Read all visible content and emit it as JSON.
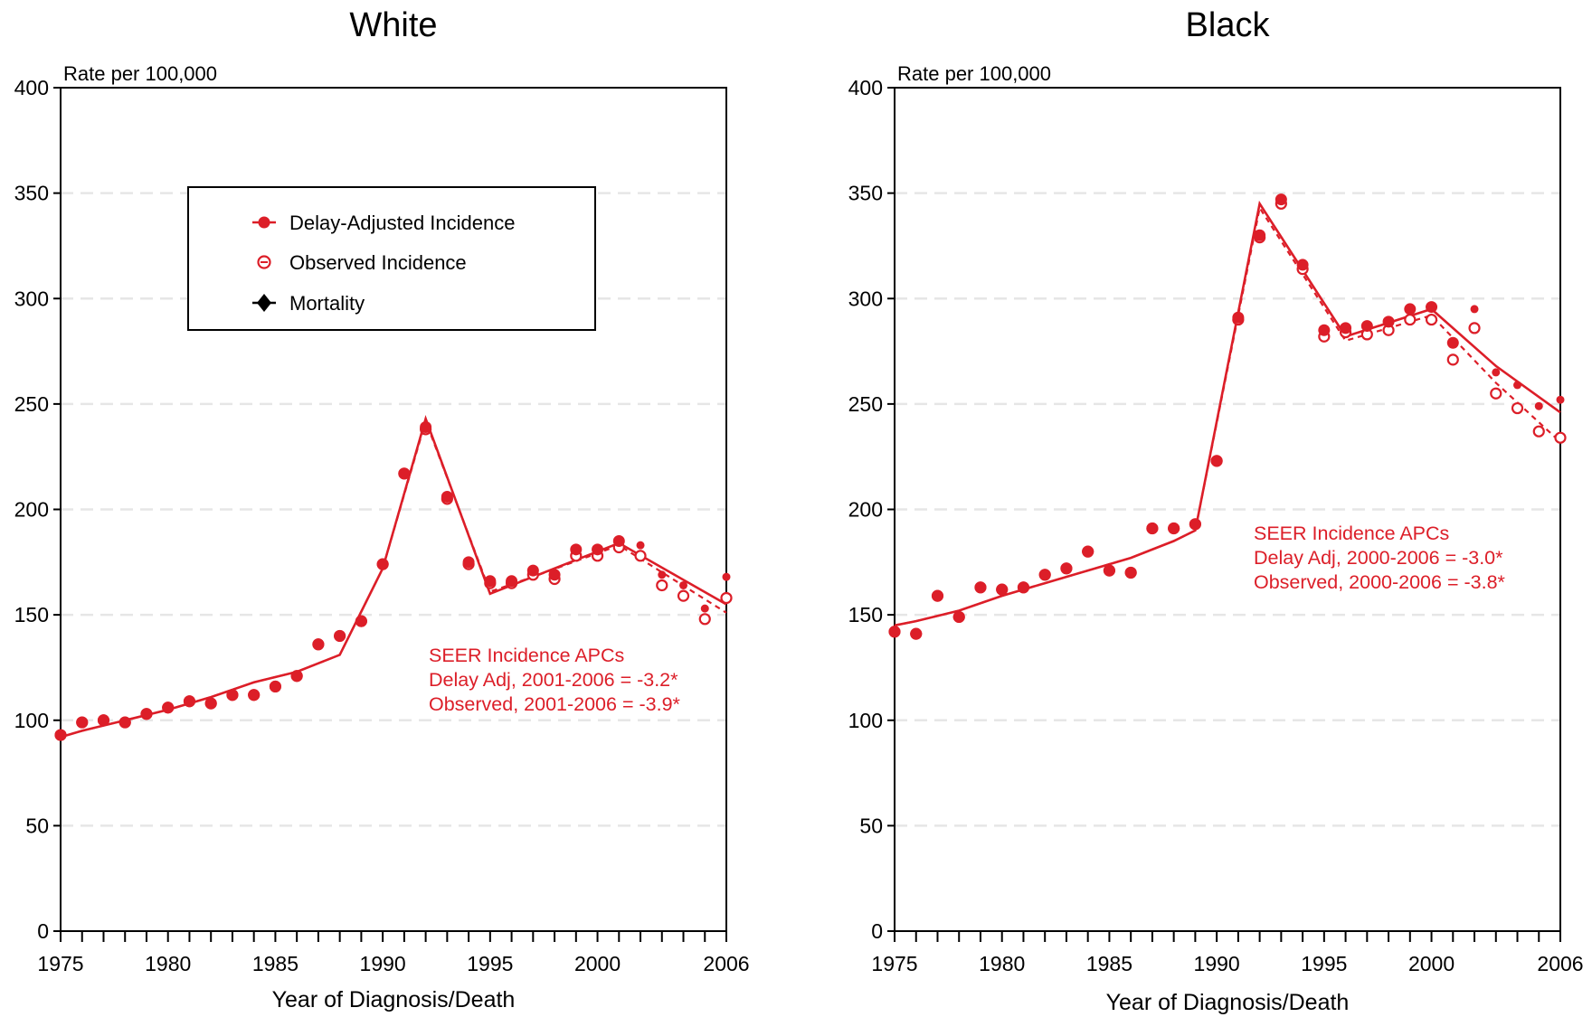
{
  "chart_data": [
    {
      "type": "line",
      "title": "White",
      "xlabel": "Year of Diagnosis/Death",
      "ylabel": "Rate per 100,000",
      "xlim": [
        1975,
        2006
      ],
      "ylim": [
        0,
        400
      ],
      "x_ticks": [
        "1975",
        "1980",
        "1985",
        "1990",
        "1995",
        "2000",
        "2006"
      ],
      "y_ticks": [
        "0",
        "50",
        "100",
        "150",
        "200",
        "250",
        "300",
        "350",
        "400"
      ],
      "grid": true,
      "legend": {
        "position": "top-center",
        "entries": [
          "Delay-Adjusted Incidence",
          "Observed Incidence",
          "Mortality"
        ]
      },
      "annotation": [
        "SEER Incidence APCs",
        "Delay Adj, 2001-2006 = -3.2*",
        "Observed, 2001-2006 = -3.9*"
      ],
      "series": [
        {
          "name": "Delay-Adjusted Incidence",
          "x": [
            1975,
            1976,
            1977,
            1978,
            1979,
            1980,
            1981,
            1982,
            1983,
            1984,
            1985,
            1986,
            1987,
            1988,
            1989,
            1990,
            1991,
            1992,
            1993,
            1994,
            1995,
            1996,
            1997,
            1998,
            1999,
            2000,
            2001,
            2002,
            2003,
            2004,
            2005,
            2006
          ],
          "values": [
            93,
            99,
            100,
            99,
            103,
            106,
            109,
            108,
            112,
            112,
            116,
            121,
            136,
            140,
            147,
            174,
            217,
            239,
            206,
            175,
            166,
            166,
            171,
            169,
            181,
            181,
            185,
            183,
            169,
            164,
            153,
            168
          ]
        },
        {
          "name": "Observed Incidence",
          "x": [
            1975,
            1976,
            1977,
            1978,
            1979,
            1980,
            1981,
            1982,
            1983,
            1984,
            1985,
            1986,
            1987,
            1988,
            1989,
            1990,
            1991,
            1992,
            1993,
            1994,
            1995,
            1996,
            1997,
            1998,
            1999,
            2000,
            2001,
            2002,
            2003,
            2004,
            2005,
            2006
          ],
          "values": [
            93,
            99,
            100,
            99,
            103,
            106,
            109,
            108,
            112,
            112,
            116,
            121,
            136,
            140,
            147,
            174,
            217,
            238,
            205,
            174,
            165,
            165,
            169,
            167,
            178,
            178,
            182,
            178,
            164,
            159,
            148,
            158
          ]
        },
        {
          "name": "Delay-Adjusted Trend",
          "x": [
            1975,
            1976,
            1978,
            1980,
            1982,
            1984,
            1986,
            1988,
            1990,
            1992,
            1995,
            1997,
            2001,
            2006
          ],
          "values": [
            92,
            95,
            100,
            105,
            111,
            118,
            123,
            131,
            172,
            243,
            160,
            168,
            184,
            155
          ]
        },
        {
          "name": "Observed Trend",
          "x": [
            1975,
            1976,
            1978,
            1980,
            1982,
            1984,
            1986,
            1988,
            1990,
            1992,
            1995,
            1997,
            2001,
            2006
          ],
          "values": [
            92,
            95,
            100,
            105,
            111,
            118,
            123,
            131,
            172,
            242,
            161,
            168,
            183,
            151
          ]
        }
      ]
    },
    {
      "type": "line",
      "title": "Black",
      "xlabel": "Year of Diagnosis/Death",
      "ylabel": "Rate per 100,000",
      "xlim": [
        1975,
        2006
      ],
      "ylim": [
        0,
        400
      ],
      "x_ticks": [
        "1975",
        "1980",
        "1985",
        "1990",
        "1995",
        "2000",
        "2006"
      ],
      "y_ticks": [
        "0",
        "50",
        "100",
        "150",
        "200",
        "250",
        "300",
        "350",
        "400"
      ],
      "grid": true,
      "annotation": [
        "SEER Incidence APCs",
        "Delay Adj, 2000-2006 = -3.0*",
        "Observed, 2000-2006 = -3.8*"
      ],
      "series": [
        {
          "name": "Delay-Adjusted Incidence",
          "x": [
            1975,
            1976,
            1977,
            1978,
            1979,
            1980,
            1981,
            1982,
            1983,
            1984,
            1985,
            1986,
            1987,
            1988,
            1989,
            1990,
            1991,
            1992,
            1993,
            1994,
            1995,
            1996,
            1997,
            1998,
            1999,
            2000,
            2001,
            2002,
            2003,
            2004,
            2005,
            2006
          ],
          "values": [
            142,
            141,
            159,
            149,
            163,
            162,
            163,
            169,
            172,
            180,
            171,
            170,
            191,
            191,
            193,
            223,
            291,
            330,
            347,
            316,
            285,
            286,
            287,
            289,
            295,
            296,
            279,
            295,
            265,
            259,
            249,
            252
          ]
        },
        {
          "name": "Observed Incidence",
          "x": [
            1975,
            1976,
            1977,
            1978,
            1979,
            1980,
            1981,
            1982,
            1983,
            1984,
            1985,
            1986,
            1987,
            1988,
            1989,
            1990,
            1991,
            1992,
            1993,
            1994,
            1995,
            1996,
            1997,
            1998,
            1999,
            2000,
            2001,
            2002,
            2003,
            2004,
            2005,
            2006
          ],
          "values": [
            142,
            141,
            159,
            149,
            163,
            162,
            163,
            169,
            172,
            180,
            171,
            170,
            191,
            191,
            193,
            223,
            290,
            329,
            345,
            314,
            282,
            284,
            283,
            285,
            290,
            290,
            271,
            286,
            255,
            248,
            237,
            234
          ]
        },
        {
          "name": "Delay-Adjusted Trend",
          "x": [
            1975,
            1976,
            1978,
            1980,
            1982,
            1984,
            1986,
            1988,
            1989,
            1992,
            1996,
            2000,
            2003,
            2006
          ],
          "values": [
            145,
            147,
            152,
            159,
            165,
            171,
            177,
            185,
            190,
            345,
            282,
            295,
            268,
            246
          ]
        },
        {
          "name": "Observed Trend",
          "x": [
            1975,
            1976,
            1978,
            1980,
            1982,
            1984,
            1986,
            1988,
            1989,
            1992,
            1996,
            2000,
            2003,
            2006
          ],
          "values": [
            145,
            147,
            152,
            159,
            165,
            171,
            177,
            185,
            190,
            343,
            280,
            292,
            260,
            232
          ]
        }
      ]
    }
  ],
  "colors": {
    "series": "#dc1e28",
    "axis": "#000000",
    "grid": "#e6e6e6"
  }
}
